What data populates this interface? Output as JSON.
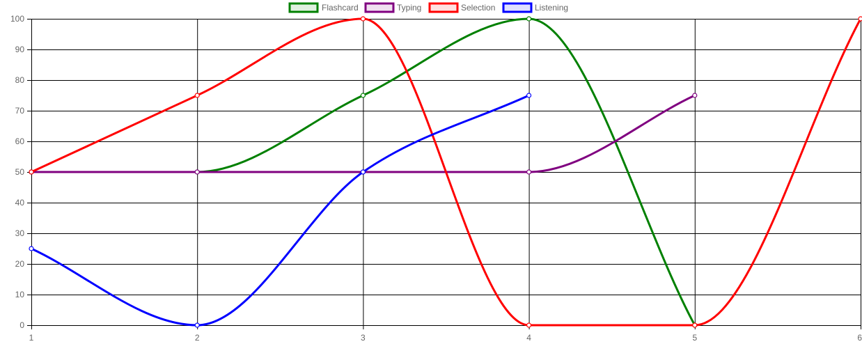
{
  "chart_data": {
    "type": "line",
    "x": [
      1,
      2,
      3,
      4,
      5,
      6
    ],
    "xlim": [
      1,
      6
    ],
    "ylim": [
      0,
      100
    ],
    "y_ticks": [
      0,
      10,
      20,
      30,
      40,
      50,
      60,
      70,
      80,
      90,
      100
    ],
    "x_ticks": [
      1,
      2,
      3,
      4,
      5,
      6
    ],
    "grid": true,
    "legend_position": "top-center",
    "series": [
      {
        "name": "Flashcard",
        "color": "#008000",
        "values": [
          50,
          50,
          75,
          100,
          0,
          null
        ]
      },
      {
        "name": "Typing",
        "color": "#800080",
        "values": [
          50,
          50,
          50,
          50,
          75,
          null
        ]
      },
      {
        "name": "Selection",
        "color": "#ff0000",
        "values": [
          50,
          75,
          100,
          0,
          0,
          100
        ]
      },
      {
        "name": "Listening",
        "color": "#0000ff",
        "values": [
          25,
          0,
          50,
          75,
          null,
          null
        ]
      }
    ]
  }
}
